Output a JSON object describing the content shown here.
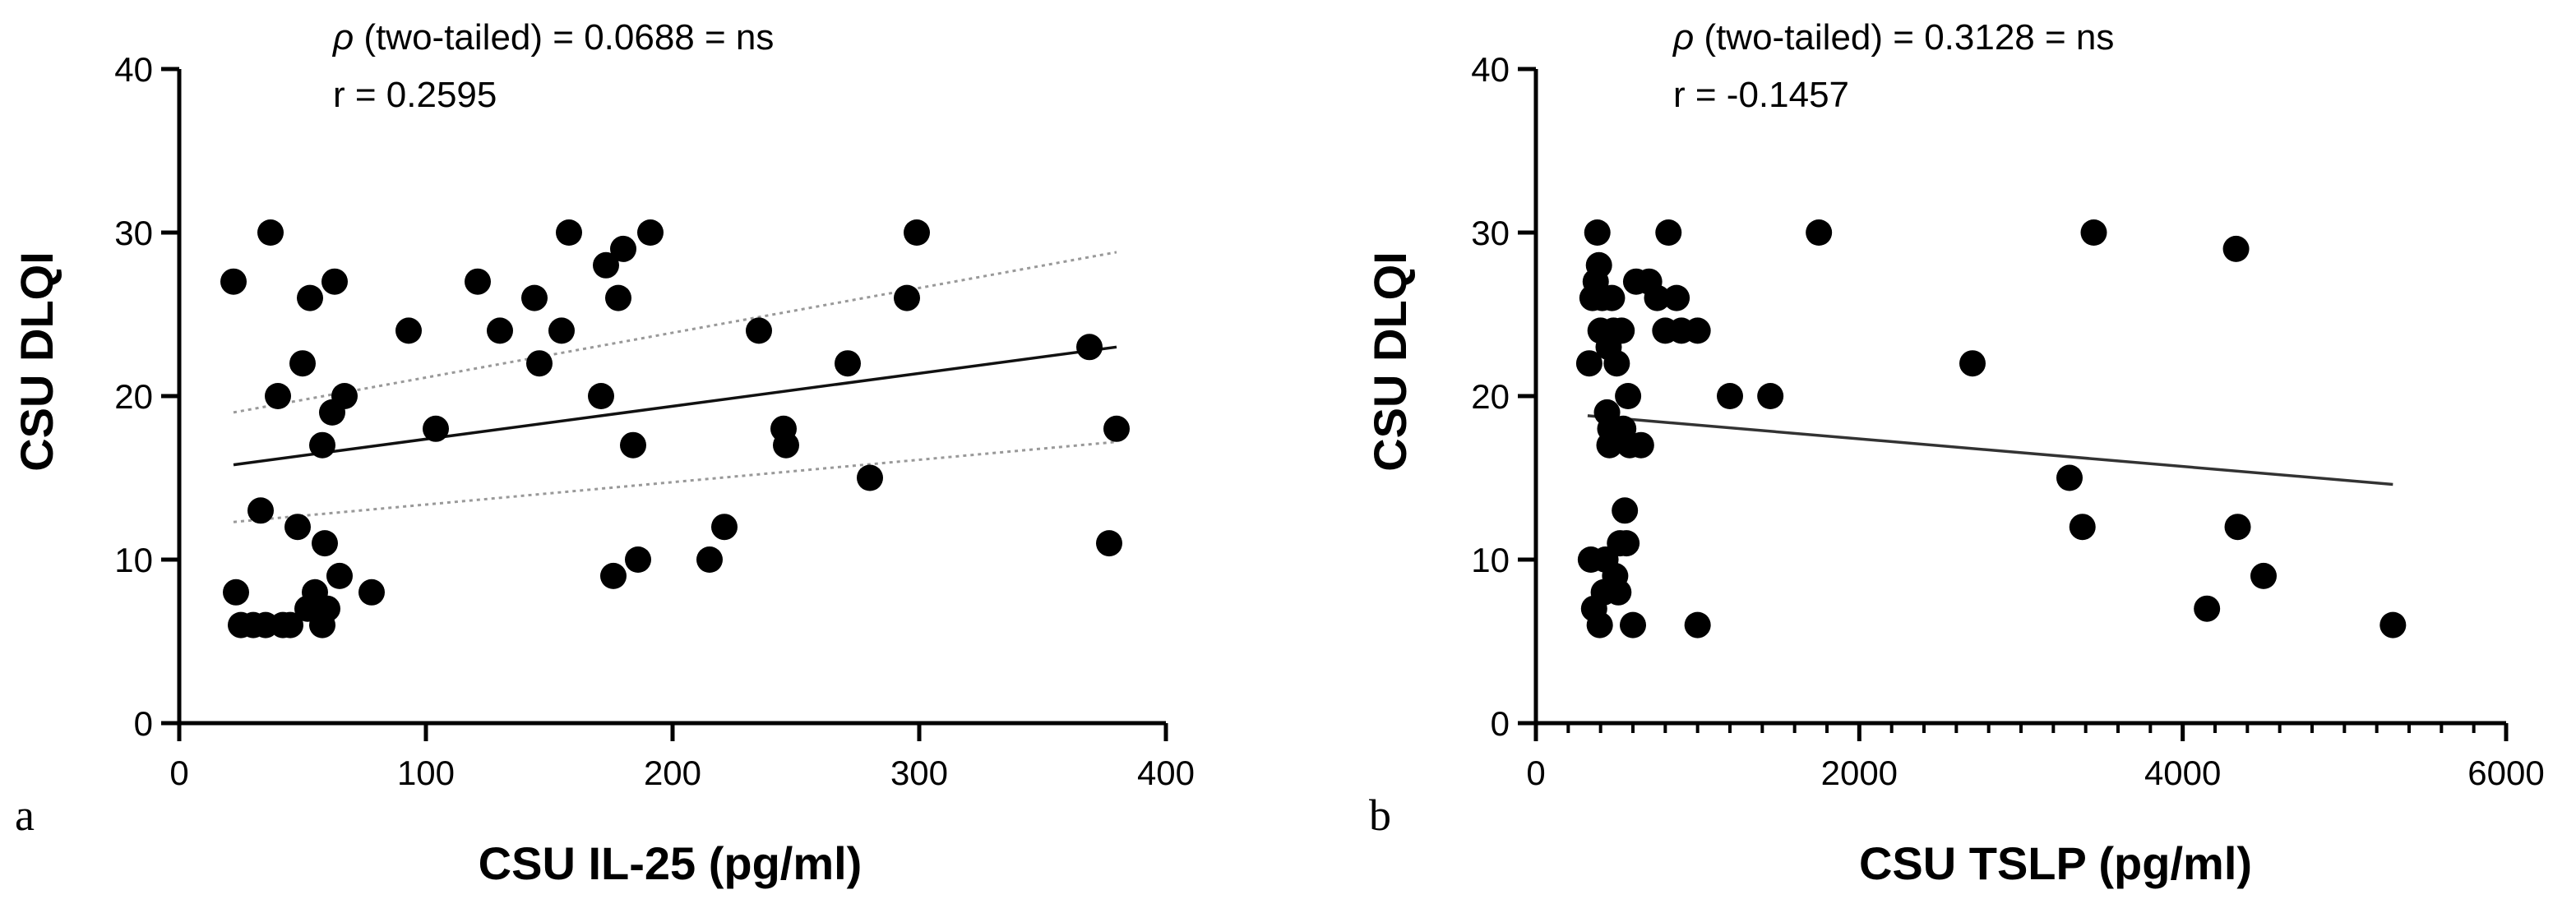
{
  "chart_data": [
    {
      "type": "scatter",
      "panel_label": "a",
      "xlabel": "CSU IL-25 (pg/ml)",
      "ylabel": "CSU DLQI",
      "xlim": [
        0,
        400
      ],
      "ylim": [
        0,
        40
      ],
      "x_ticks": [
        0,
        100,
        200,
        300,
        400
      ],
      "y_ticks": [
        0,
        10,
        20,
        30,
        40
      ],
      "x_ticks_minor": [],
      "annotations": [
        {
          "symbol": "ρ",
          "text": " (two-tailed) = 0.0688 = ns"
        },
        {
          "symbol": "",
          "text": "r = 0.2595"
        }
      ],
      "regression": {
        "x": [
          22,
          380
        ],
        "y": [
          15.8,
          23.0
        ]
      },
      "ci_upper": {
        "x": [
          22,
          380
        ],
        "y": [
          19.0,
          28.8
        ]
      },
      "ci_lower": {
        "x": [
          22,
          380
        ],
        "y": [
          12.3,
          17.2
        ]
      },
      "points": [
        [
          22,
          27
        ],
        [
          23,
          8
        ],
        [
          25,
          6
        ],
        [
          30,
          6
        ],
        [
          33,
          13
        ],
        [
          35,
          6
        ],
        [
          37,
          30
        ],
        [
          40,
          20
        ],
        [
          42,
          6
        ],
        [
          45,
          6
        ],
        [
          48,
          12
        ],
        [
          50,
          22
        ],
        [
          52,
          7
        ],
        [
          53,
          26
        ],
        [
          55,
          8
        ],
        [
          56,
          7
        ],
        [
          58,
          6
        ],
        [
          58,
          17
        ],
        [
          59,
          11
        ],
        [
          60,
          7
        ],
        [
          62,
          19
        ],
        [
          63,
          27
        ],
        [
          65,
          9
        ],
        [
          67,
          20
        ],
        [
          78,
          8
        ],
        [
          93,
          24
        ],
        [
          104,
          18
        ],
        [
          121,
          27
        ],
        [
          130,
          24
        ],
        [
          144,
          26
        ],
        [
          146,
          22
        ],
        [
          155,
          24
        ],
        [
          158,
          30
        ],
        [
          171,
          20
        ],
        [
          173,
          28
        ],
        [
          176,
          9
        ],
        [
          178,
          26
        ],
        [
          180,
          29
        ],
        [
          184,
          17
        ],
        [
          186,
          10
        ],
        [
          191,
          30
        ],
        [
          215,
          10
        ],
        [
          221,
          12
        ],
        [
          235,
          24
        ],
        [
          245,
          18
        ],
        [
          246,
          17
        ],
        [
          271,
          22
        ],
        [
          280,
          15
        ],
        [
          295,
          26
        ],
        [
          299,
          30
        ],
        [
          369,
          23
        ],
        [
          377,
          11
        ],
        [
          380,
          18
        ]
      ]
    },
    {
      "type": "scatter",
      "panel_label": "b",
      "xlabel": "CSU TSLP (pg/ml)",
      "ylabel": "CSU DLQI",
      "xlim": [
        0,
        6000
      ],
      "ylim": [
        0,
        40
      ],
      "x_ticks": [
        0,
        2000,
        4000,
        6000
      ],
      "y_ticks": [
        0,
        10,
        20,
        30,
        40
      ],
      "x_ticks_minor": [
        200,
        400,
        600,
        800,
        1000,
        1200,
        1400,
        1600,
        1800,
        2200,
        2400,
        2600,
        2800,
        3000,
        3200,
        3400,
        3600,
        3800,
        4200,
        4400,
        4600,
        4800,
        5000,
        5200,
        5400,
        5600,
        5800
      ],
      "annotations": [
        {
          "symbol": "ρ",
          "text": " (two-tailed) = 0.3128 = ns"
        },
        {
          "symbol": "",
          "text": "r = -0.1457"
        }
      ],
      "regression": {
        "x": [
          320,
          5300
        ],
        "y": [
          18.8,
          14.6
        ]
      },
      "ci_upper": null,
      "ci_lower": null,
      "points": [
        [
          330,
          22
        ],
        [
          340,
          10
        ],
        [
          350,
          26
        ],
        [
          360,
          7
        ],
        [
          370,
          27
        ],
        [
          380,
          30
        ],
        [
          390,
          28
        ],
        [
          395,
          6
        ],
        [
          400,
          24
        ],
        [
          410,
          26
        ],
        [
          420,
          8
        ],
        [
          430,
          10
        ],
        [
          440,
          19
        ],
        [
          450,
          23
        ],
        [
          455,
          17
        ],
        [
          460,
          18
        ],
        [
          470,
          26
        ],
        [
          480,
          24
        ],
        [
          490,
          9
        ],
        [
          500,
          22
        ],
        [
          510,
          8
        ],
        [
          520,
          11
        ],
        [
          530,
          24
        ],
        [
          540,
          18
        ],
        [
          550,
          13
        ],
        [
          560,
          11
        ],
        [
          570,
          20
        ],
        [
          580,
          17
        ],
        [
          600,
          6
        ],
        [
          620,
          27
        ],
        [
          650,
          17
        ],
        [
          700,
          27
        ],
        [
          750,
          26
        ],
        [
          800,
          24
        ],
        [
          820,
          30
        ],
        [
          870,
          26
        ],
        [
          900,
          24
        ],
        [
          1000,
          24
        ],
        [
          1000,
          6
        ],
        [
          1200,
          20
        ],
        [
          1450,
          20
        ],
        [
          1750,
          30
        ],
        [
          2700,
          22
        ],
        [
          3300,
          15
        ],
        [
          3380,
          12
        ],
        [
          3450,
          30
        ],
        [
          4150,
          7
        ],
        [
          4330,
          29
        ],
        [
          4340,
          12
        ],
        [
          4500,
          9
        ],
        [
          5300,
          6
        ]
      ]
    }
  ]
}
